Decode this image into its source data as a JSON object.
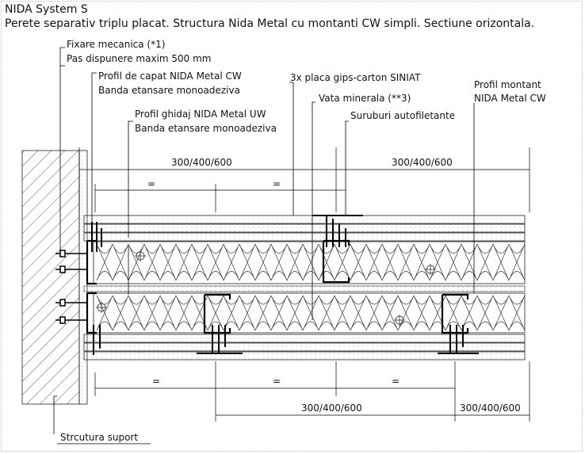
{
  "title": "NIDA System S",
  "subtitle": "Perete separativ triplu placat. Structura Nida Metal cu montanti CW simpli. Sectiune orizontala.",
  "labels": {
    "fixare": "Fixare mecanica (*1)",
    "pas": "Pas dispunere maxim 500 mm",
    "profil_capat": "Profil de capat NIDA Metal CW",
    "banda1": "Banda etansare monoadeziva",
    "profil_ghidaj": "Profil ghidaj NIDA Metal UW",
    "banda2": "Banda etansare monoadeziva",
    "placa": "3x placa gips-carton SINIAT",
    "vata": "Vata minerala (**3)",
    "suruburi": "Suruburi autofiletante",
    "montant1": "Profil montant",
    "montant2": "NIDA Metal CW",
    "suport": "Strcutura suport"
  },
  "dimensions": {
    "top_left": "300/400/600",
    "top_right": "300/400/600",
    "eq": "=",
    "bottom_mid": "300/400/600",
    "bottom_right": "300/400/600"
  }
}
